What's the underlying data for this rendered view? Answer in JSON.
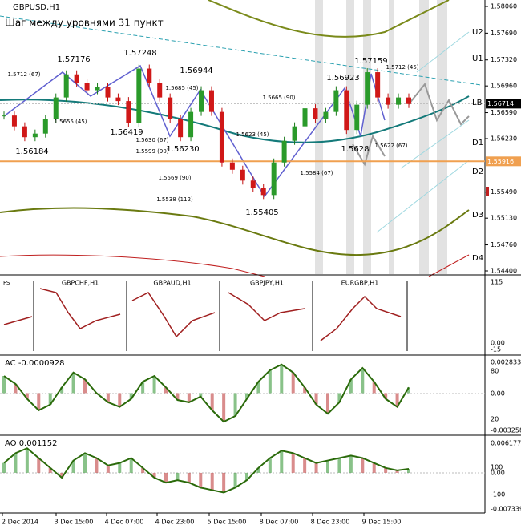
{
  "chart_data": {
    "type": "candlestick",
    "symbol": "GBPUSD,H1",
    "subtitle": "Шаг между уровнями 31 пункт",
    "closes": [
      1.5655,
      1.564,
      1.5625,
      1.563,
      1.565,
      1.568,
      1.5712,
      1.57,
      1.569,
      1.5695,
      1.568,
      1.5675,
      1.5645,
      1.572,
      1.57,
      1.568,
      1.565,
      1.5625,
      1.566,
      1.569,
      1.566,
      1.559,
      1.558,
      1.5565,
      1.5555,
      1.5545,
      1.559,
      1.562,
      1.564,
      1.5665,
      1.565,
      1.566,
      1.569,
      1.5635,
      1.567,
      1.5715,
      1.568,
      1.567,
      1.568,
      1.5671
    ],
    "ylim": [
      1.544,
      1.5806
    ],
    "yticks": [
      {
        "value": 1.5806,
        "label": "1.58060"
      },
      {
        "value": 1.5769,
        "label": "1.57690"
      },
      {
        "value": 1.5732,
        "label": "1.57320"
      },
      {
        "value": 1.5696,
        "label": "1.56960"
      },
      {
        "value": 1.5659,
        "label": "1.56590"
      },
      {
        "value": 1.5623,
        "label": "1.56230"
      },
      {
        "value": 1.5549,
        "label": "1.55490"
      },
      {
        "value": 1.5513,
        "label": "1.55130"
      },
      {
        "value": 1.5476,
        "label": "1.54760"
      },
      {
        "value": 1.544,
        "label": "1.54400"
      }
    ],
    "current_price": {
      "value": 1.56714,
      "label": "1.56714"
    },
    "level_line": {
      "value": 1.55916,
      "label": "1.55916"
    },
    "levels": [
      "U2",
      "U1",
      "LB",
      "D1",
      "D2",
      "D3",
      "D4"
    ],
    "annotations": [
      "1.57176",
      "1.57248",
      "1.56944",
      "1.56419",
      "1.56230",
      "1.56184",
      "1.55405",
      "1.56923",
      "1.57159",
      "1.5628",
      "1.5712 (67)",
      "1.5655 (45)",
      "1.5685 (45)",
      "1.5630 (67)",
      "1.5599 (90)",
      "1.5623 (45)",
      "1.5665 (90)",
      "1.5569 (90)",
      "1.5538 (112)",
      "1.5584 (67)",
      "1.5712 (45)",
      "1.5622 (67)"
    ],
    "time_labels": [
      "2 Dec 2014",
      "3 Dec 15:00",
      "4 Dec 07:00",
      "4 Dec 23:00",
      "5 Dec 15:00",
      "8 Dec 07:00",
      "8 Dec 23:00",
      "9 Dec 15:00"
    ],
    "fs": {
      "label": "FS",
      "symbols": [
        "GBPCHF,H1",
        "GBPAUD,H1",
        "GBPJPY,H1",
        "EURGBP,H1"
      ],
      "scale": [
        "115",
        "0.00",
        "-15"
      ]
    },
    "ac": {
      "label": "AC -0.0000928",
      "scale": [
        "0.002833",
        "80",
        "0.00",
        "20",
        "-0.003258"
      ],
      "ylim": [
        -0.003258,
        0.002833
      ],
      "values": [
        0.0015,
        0.0008,
        -0.0005,
        -0.0015,
        -0.001,
        0.0005,
        0.0018,
        0.0012,
        0,
        -0.0008,
        -0.0012,
        -0.0005,
        0.001,
        0.0015,
        0.0005,
        -0.0006,
        -0.0008,
        -0.0003,
        -0.0015,
        -0.0025,
        -0.002,
        -0.0005,
        0.001,
        0.002,
        0.0025,
        0.0018,
        0.0005,
        -0.001,
        -0.0018,
        -0.0008,
        0.0012,
        0.0022,
        0.001,
        -0.0005,
        -0.0012,
        0.0005
      ]
    },
    "ao": {
      "label": "AO 0.001152",
      "scale": [
        "0.006177",
        "100",
        "0.00",
        "-100",
        "-0.007339"
      ],
      "ylim": [
        -0.007339,
        0.006177
      ],
      "values": [
        0.002,
        0.004,
        0.005,
        0.003,
        0.001,
        -0.001,
        0.0025,
        0.004,
        0.003,
        0.0015,
        0.002,
        0.003,
        0.001,
        -0.001,
        -0.002,
        -0.0015,
        -0.002,
        -0.003,
        -0.0035,
        -0.004,
        -0.003,
        -0.0015,
        0.001,
        0.003,
        0.0045,
        0.004,
        0.003,
        0.002,
        0.0025,
        0.003,
        0.0035,
        0.003,
        0.002,
        0.001,
        0.0005,
        0.0008
      ]
    }
  }
}
